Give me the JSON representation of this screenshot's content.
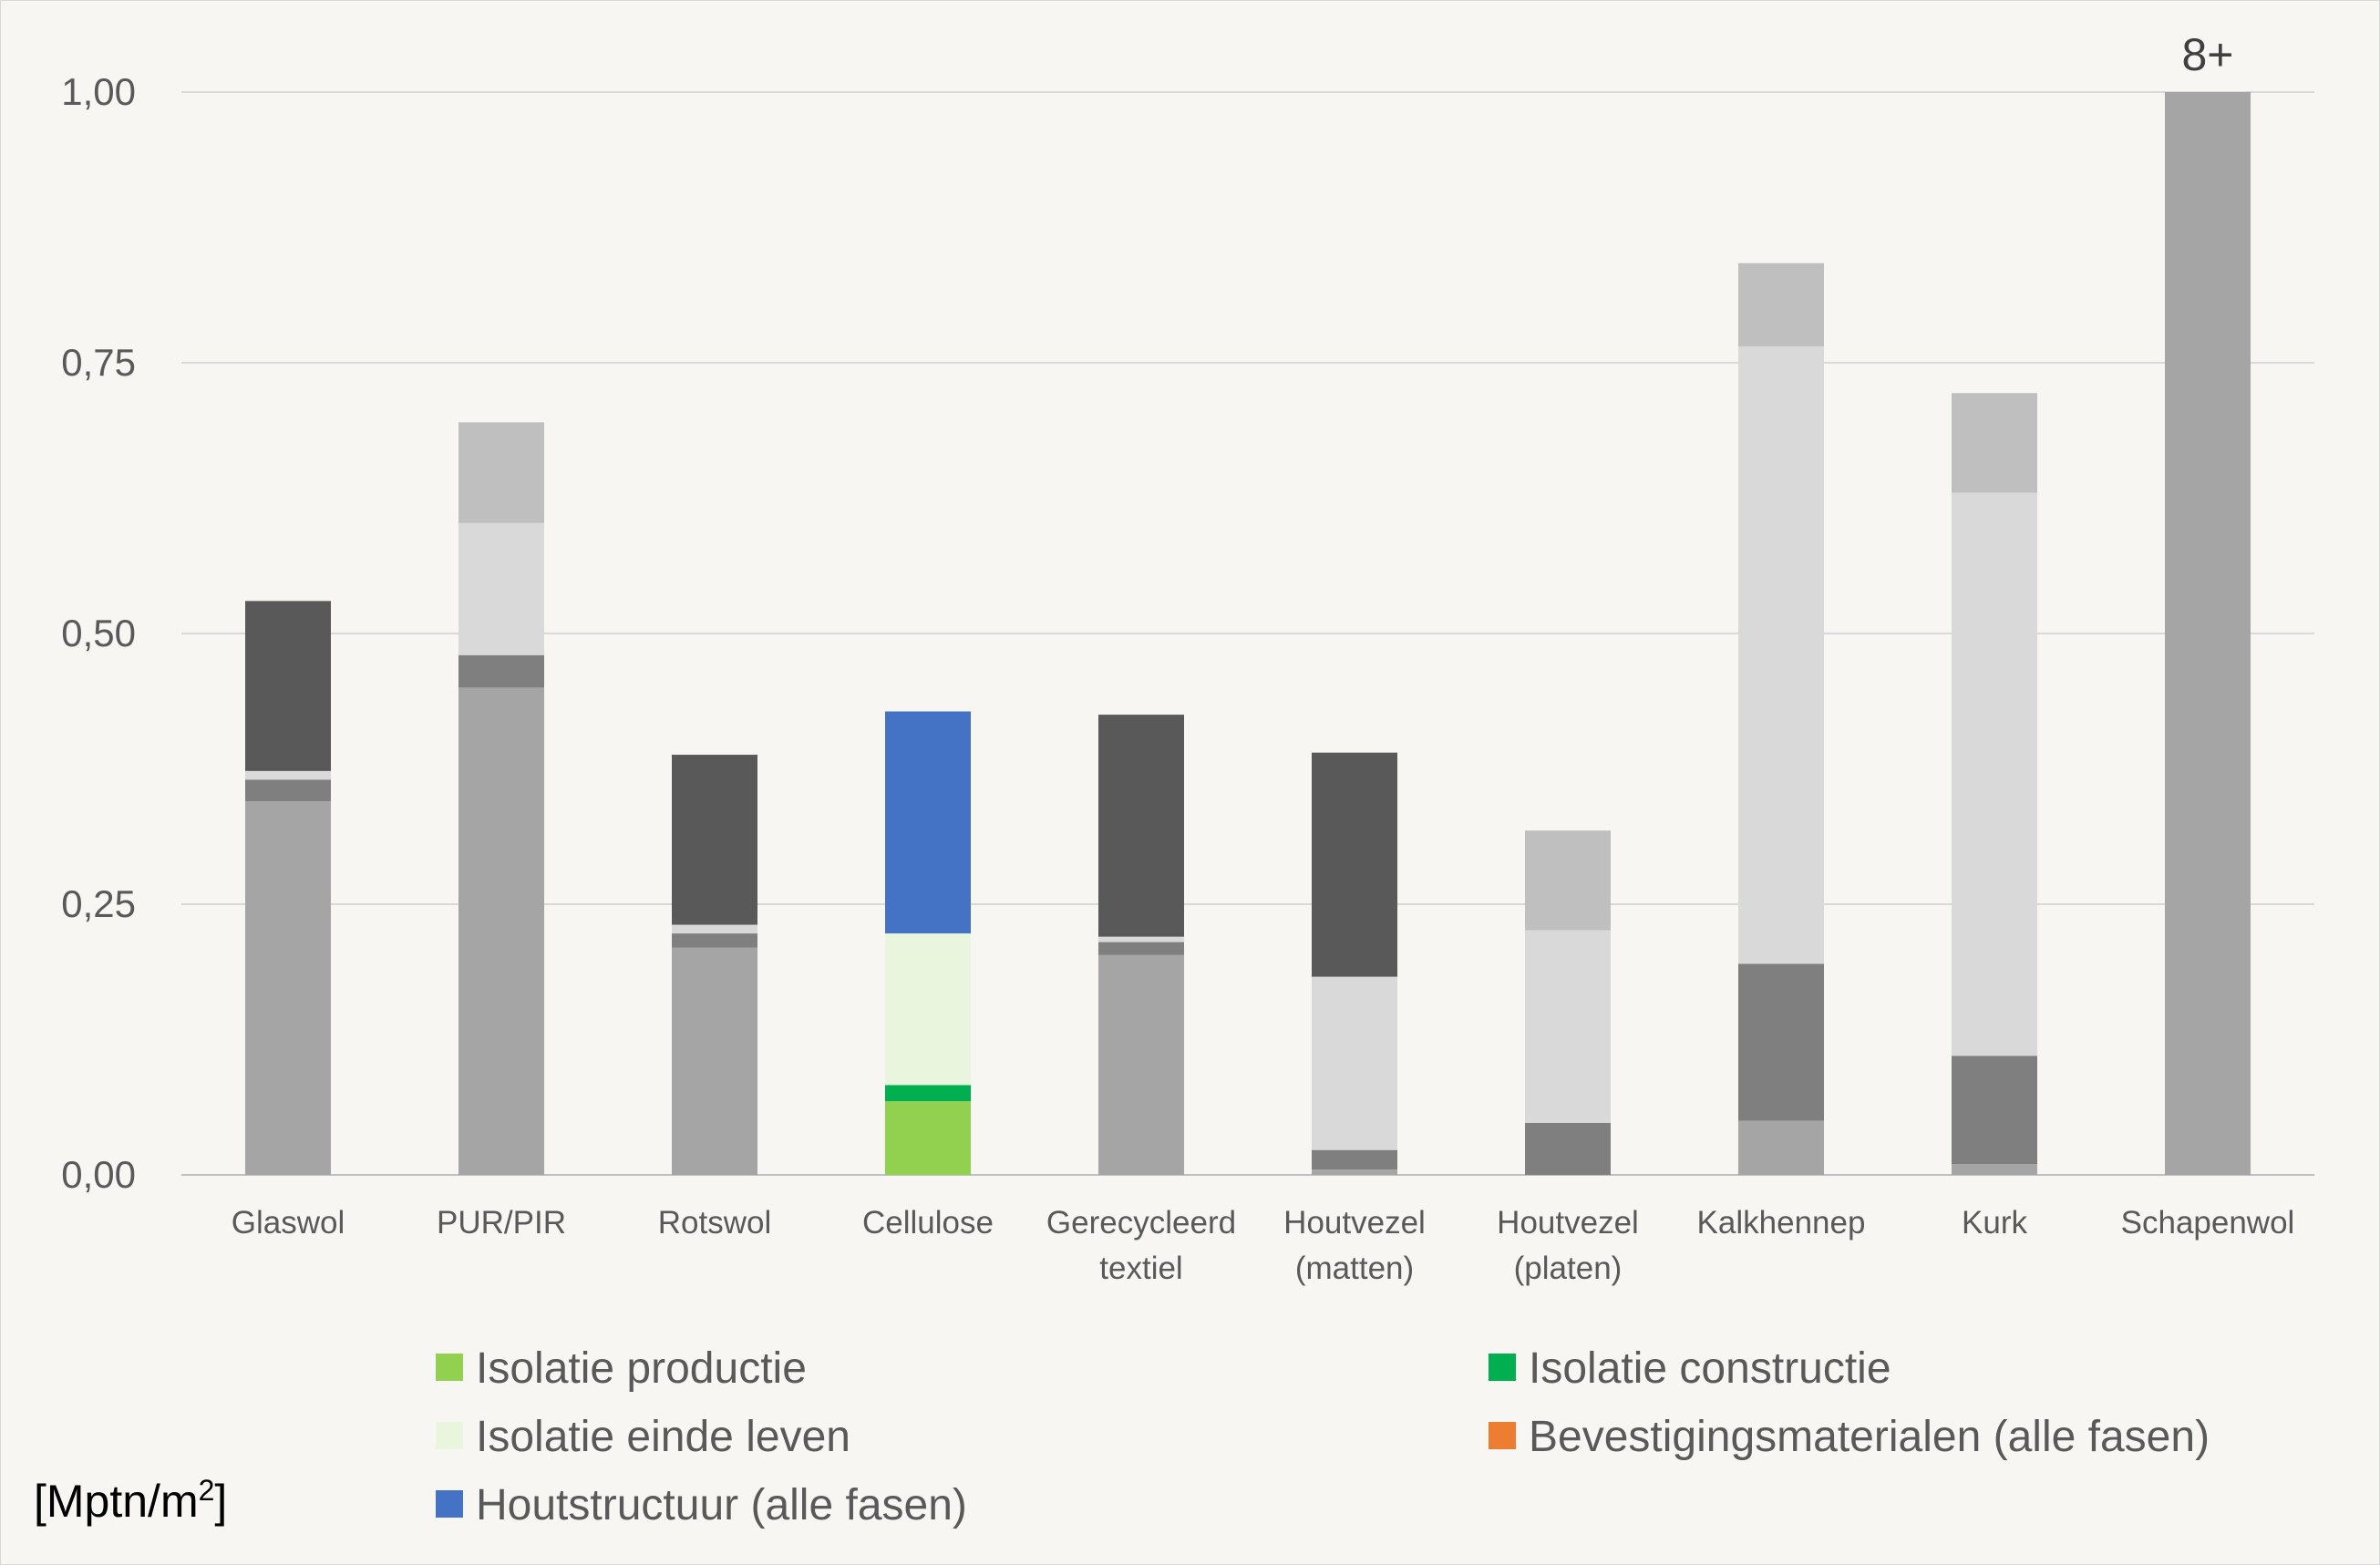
{
  "chart_data": {
    "type": "bar",
    "stacked": true,
    "categories": [
      [
        "Glaswol"
      ],
      [
        "PUR/PIR"
      ],
      [
        "Rotswol"
      ],
      [
        "Cellulose"
      ],
      [
        "Gerecycleerd",
        "textiel"
      ],
      [
        "Houtvezel",
        "(matten)"
      ],
      [
        "Houtvezel",
        "(platen)"
      ],
      [
        "Kalkhennep"
      ],
      [
        "Kurk"
      ],
      [
        "Schapenwol"
      ]
    ],
    "y_ticks": [
      "0,00",
      "0,25",
      "0,50",
      "0,75",
      "1,00"
    ],
    "ylim": [
      0,
      1.0
    ],
    "unit_label": "[Mptn/m",
    "unit_superscript": "2",
    "unit_suffix": "]",
    "annotation": {
      "category_index": 9,
      "text": "8+"
    },
    "grid": true,
    "legend_position": "bottom",
    "legend": [
      {
        "name": "Isolatie productie",
        "color": "#92d050"
      },
      {
        "name": "Isolatie constructie",
        "color": "#00b050"
      },
      {
        "name": "Isolatie einde leven",
        "color": "#e9f5dc"
      },
      {
        "name": "Bevestigingsmaterialen (alle fasen)",
        "color": "#ed7d31"
      },
      {
        "name": "Houtstructuur (alle fasen)",
        "color": "#4472c4"
      }
    ],
    "series": [
      {
        "name": "Isolatie productie",
        "color": "#92d050",
        "grey_color": "#a5a5a5",
        "values": [
          0.345,
          0.45,
          0.21,
          0.068,
          0.203,
          0.005,
          0.0,
          0.05,
          0.01,
          1.0
        ]
      },
      {
        "name": "Isolatie constructie",
        "color": "#00b050",
        "grey_color": "#7f7f7f",
        "values": [
          0.02,
          0.03,
          0.013,
          0.015,
          0.012,
          0.018,
          0.048,
          0.145,
          0.1,
          0.0
        ]
      },
      {
        "name": "Isolatie einde leven",
        "color": "#e9f5dc",
        "grey_color": "#d9d9d9",
        "values": [
          0.008,
          0.122,
          0.008,
          0.14,
          0.005,
          0.16,
          0.178,
          0.57,
          0.52,
          0.0
        ]
      },
      {
        "name": "Bevestigingsmaterialen (alle fasen)",
        "color": "#ed7d31",
        "grey_color": "#bfbfbf",
        "values": [
          0.0,
          0.093,
          0.0,
          0.0,
          0.0,
          0.0,
          0.092,
          0.077,
          0.092,
          0.0
        ]
      },
      {
        "name": "Houtstructuur (alle fasen)",
        "color": "#4472c4",
        "grey_color": "#595959",
        "values": [
          0.157,
          0.0,
          0.157,
          0.205,
          0.205,
          0.207,
          0.0,
          0.0,
          0.0,
          0.0
        ]
      }
    ],
    "highlighted_category_index": 3
  }
}
